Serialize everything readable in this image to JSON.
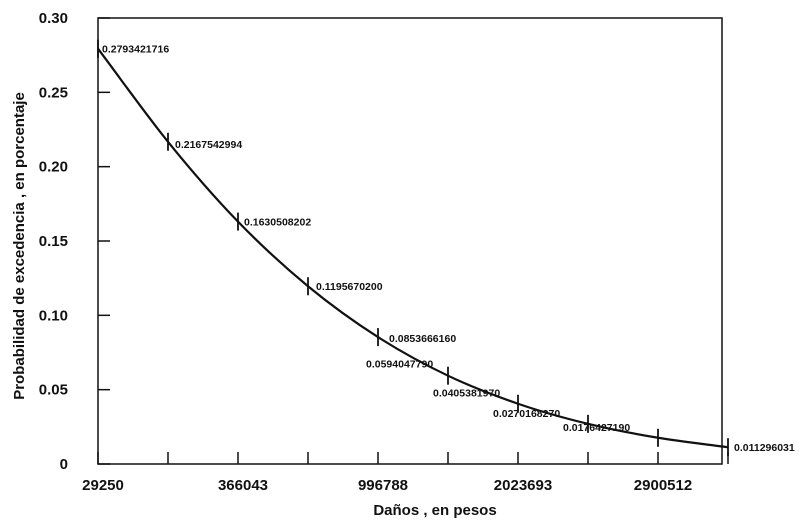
{
  "chart_data": {
    "type": "line",
    "title": "",
    "xlabel": "Daños , en pesos",
    "ylabel": "Probabilidad de excedencia , en porcentaje",
    "x_tick_labels": [
      "29250",
      "",
      "366043",
      "",
      "996788",
      "",
      "2023693",
      "",
      "2900512",
      ""
    ],
    "ylim": [
      0,
      0.3
    ],
    "y_ticks": [
      0,
      0.05,
      0.1,
      0.15,
      0.2,
      0.25,
      0.3
    ],
    "y_tick_labels": [
      "0",
      "0.05",
      "0.10",
      "0.15",
      "0.20",
      "0.25",
      "0.30"
    ],
    "grid": false,
    "series": [
      {
        "values": [
          0.2793421716,
          0.2167542994,
          0.1630508202,
          0.11956702,
          0.085366616,
          0.059404779,
          0.040538197,
          0.027016827,
          0.017642719,
          0.011296031
        ],
        "labels": [
          "0.2793421716",
          "0.2167542994",
          "0.1630508202",
          "0.1195670200",
          "0.0853666160",
          "0.0594047790",
          "0.0405381970",
          "0.0270168270",
          "0.0176427190",
          "0.011296031"
        ]
      }
    ]
  }
}
